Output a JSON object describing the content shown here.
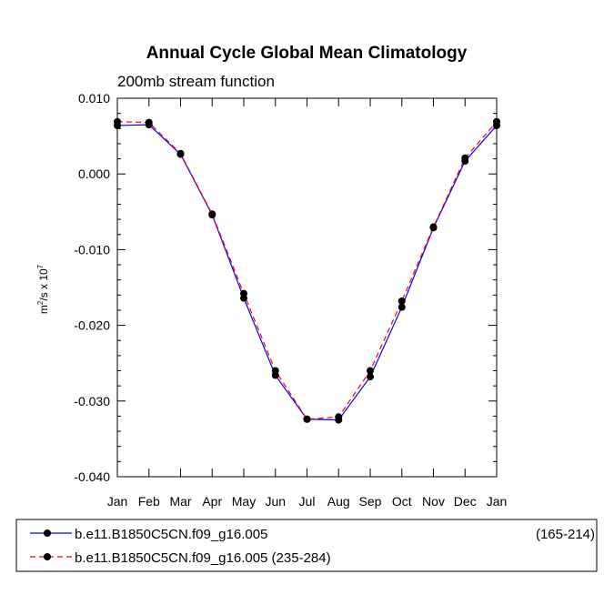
{
  "chart_data": {
    "type": "line",
    "title": "Annual Cycle Global Mean Climatology",
    "subtitle": "200mb stream function",
    "ylabel_base": "m",
    "ylabel_exp1": "2",
    "ylabel_mid": "/s x 10",
    "ylabel_exp2": "7",
    "categories": [
      "Jan",
      "Feb",
      "Mar",
      "Apr",
      "May",
      "Jun",
      "Jul",
      "Aug",
      "Sep",
      "Oct",
      "Nov",
      "Dec",
      "Jan"
    ],
    "ylim": [
      -0.04,
      0.01
    ],
    "yticks": [
      {
        "value": 0.01,
        "label": "0.010"
      },
      {
        "value": 0.0,
        "label": "0.000"
      },
      {
        "value": -0.01,
        "label": "-0.010"
      },
      {
        "value": -0.02,
        "label": "-0.020"
      },
      {
        "value": -0.03,
        "label": "-0.030"
      },
      {
        "value": -0.04,
        "label": "-0.040"
      }
    ],
    "series": [
      {
        "name": "b.e11.B1850C5CN.f09_g16.005",
        "name_suffix": "(165-214)",
        "color": "#0000ff",
        "dash": "solid",
        "values": [
          0.0064,
          0.0065,
          0.0026,
          -0.0054,
          -0.0164,
          -0.0266,
          -0.0324,
          -0.0325,
          -0.0268,
          -0.0176,
          -0.0071,
          0.0017,
          0.0064
        ]
      },
      {
        "name": "b.e11.B1850C5CN.f09_g16.005 (235-284)",
        "name_suffix": "",
        "color": "#ff0000",
        "dash": "dashed",
        "values": [
          0.0069,
          0.0068,
          0.0027,
          -0.0053,
          -0.0158,
          -0.026,
          -0.0324,
          -0.0321,
          -0.026,
          -0.0168,
          -0.007,
          0.0021,
          0.0069
        ]
      }
    ],
    "grid": false,
    "legend_position": "bottom"
  }
}
